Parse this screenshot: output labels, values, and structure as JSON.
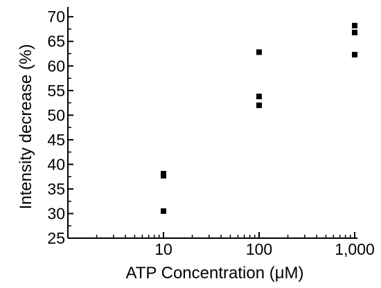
{
  "chart_data": {
    "type": "scatter",
    "xlabel": "ATP Concentration (μM)",
    "ylabel": "Intensity decrease (%)",
    "x_scale": "log",
    "xlim": [
      1,
      1000
    ],
    "ylim": [
      25,
      72
    ],
    "x_ticks": [
      {
        "value": 10,
        "label": "10"
      },
      {
        "value": 100,
        "label": "100"
      },
      {
        "value": 1000,
        "label": "1,000"
      }
    ],
    "y_ticks": [
      {
        "value": 25,
        "label": "25"
      },
      {
        "value": 30,
        "label": "30"
      },
      {
        "value": 35,
        "label": "35"
      },
      {
        "value": 40,
        "label": "40"
      },
      {
        "value": 45,
        "label": "45"
      },
      {
        "value": 50,
        "label": "50"
      },
      {
        "value": 55,
        "label": "55"
      },
      {
        "value": 60,
        "label": "60"
      },
      {
        "value": 65,
        "label": "65"
      },
      {
        "value": 70,
        "label": "70"
      }
    ],
    "grid": false,
    "marker": "square",
    "marker_color": "#000000",
    "series": [
      {
        "x": [
          10,
          10,
          10,
          100,
          100,
          100,
          1000,
          1000,
          1000
        ],
        "y": [
          38.1,
          37.7,
          30.5,
          62.8,
          53.8,
          52.0,
          68.2,
          66.8,
          62.3
        ]
      }
    ]
  }
}
